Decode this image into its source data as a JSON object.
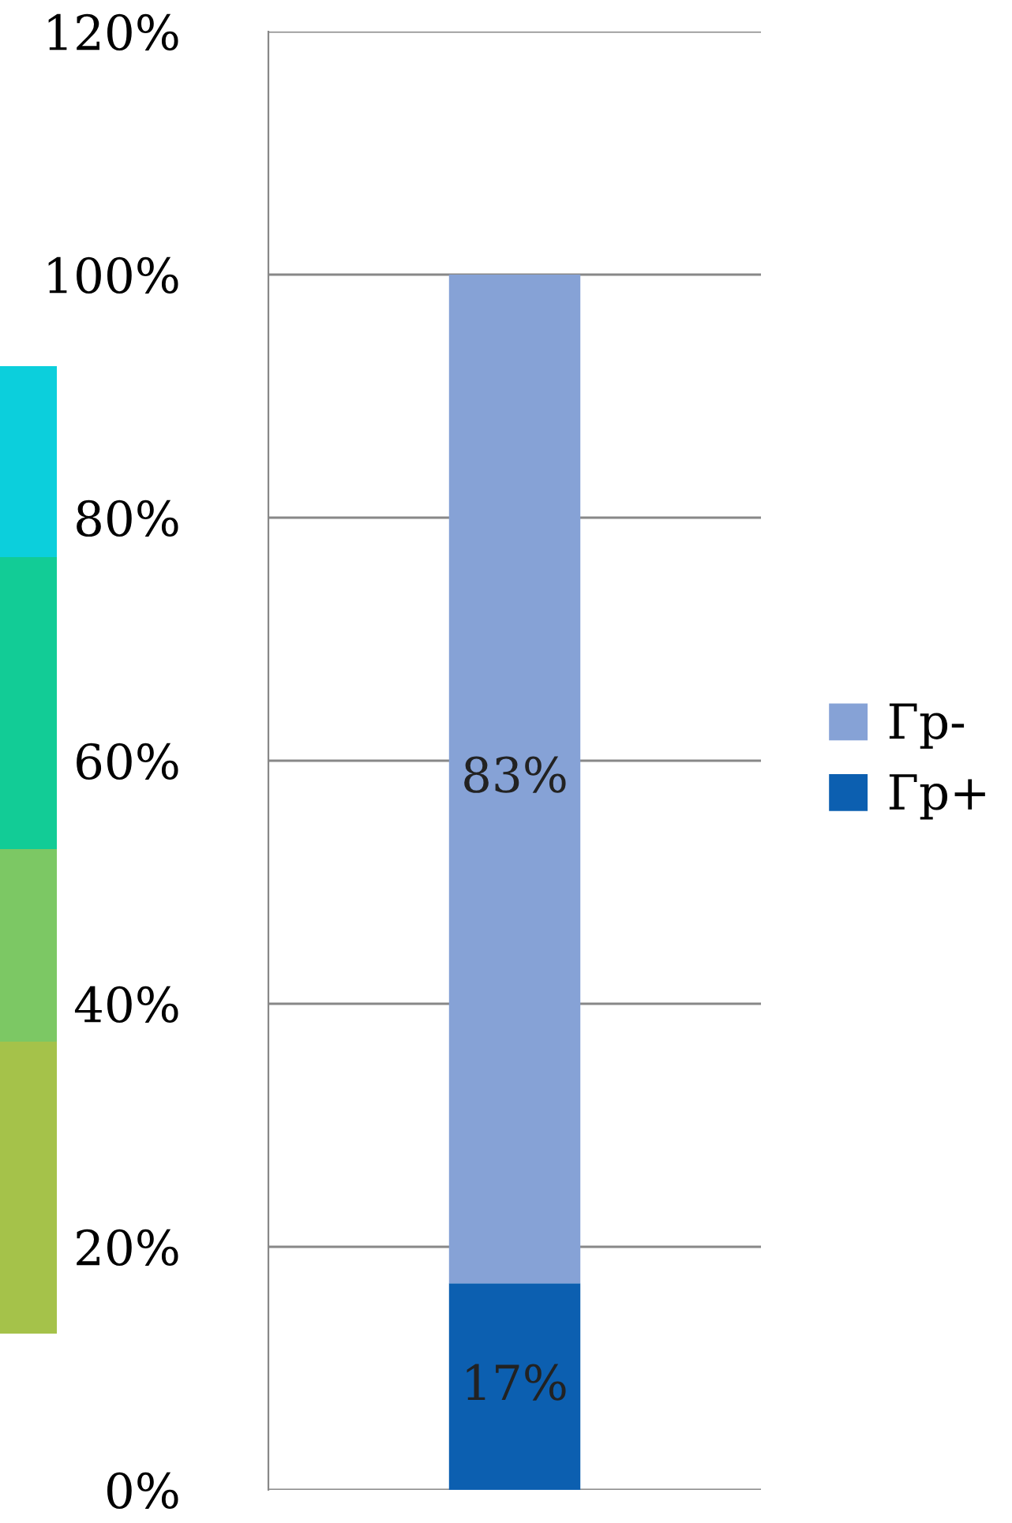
{
  "chart_data": {
    "type": "bar",
    "stacked": true,
    "categories": [
      null
    ],
    "series": [
      {
        "name": "Гр+",
        "color": "#0c5fb0",
        "values": [
          17
        ],
        "value_labels": [
          "17%"
        ]
      },
      {
        "name": "Гр-",
        "color": "#86a2d6",
        "values": [
          83
        ],
        "value_labels": [
          "83%"
        ]
      }
    ],
    "ylim": [
      0,
      120
    ],
    "yticks": [
      {
        "value": 0,
        "label": "0%"
      },
      {
        "value": 20,
        "label": "20%"
      },
      {
        "value": 40,
        "label": "40%"
      },
      {
        "value": 60,
        "label": "60%"
      },
      {
        "value": 80,
        "label": "80%"
      },
      {
        "value": 100,
        "label": "100%"
      },
      {
        "value": 120,
        "label": "120%"
      }
    ],
    "grid": "y",
    "legend": "right"
  }
}
